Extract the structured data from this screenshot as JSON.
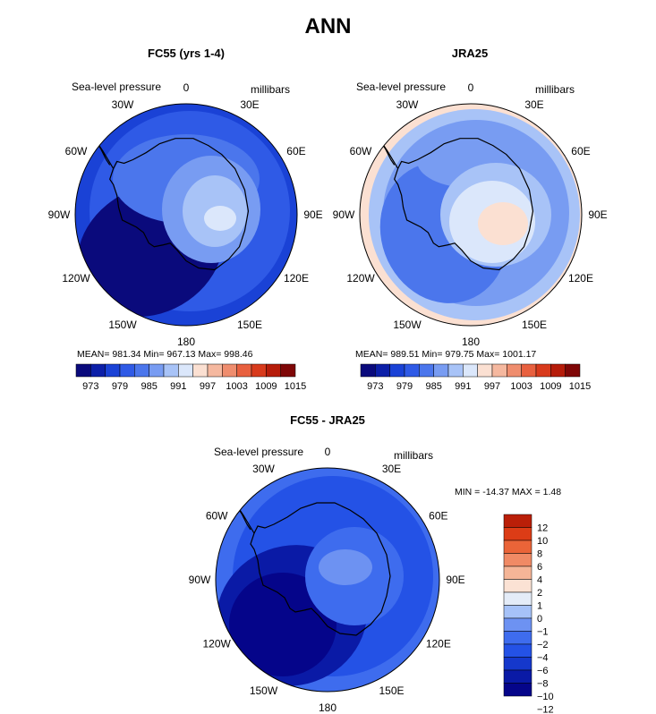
{
  "main_title": "ANN",
  "colors": {
    "palette": [
      "#0a0a7c",
      "#0c1fa8",
      "#1a42d6",
      "#2f5ae6",
      "#4b76ec",
      "#789cf2",
      "#a8c3f7",
      "#dbe7fb",
      "#fbe0d2",
      "#f5b89f",
      "#ef8d6e",
      "#e8603f",
      "#d83a1c",
      "#b61c0a",
      "#7f0707"
    ],
    "diff_palette": [
      "#05058a",
      "#0a1aa6",
      "#1538cc",
      "#2452e6",
      "#3e6cee",
      "#6d92f2",
      "#a6c2f8",
      "#e4ecf8",
      "#fbe2d4",
      "#f5b597",
      "#f08a65",
      "#ea6438",
      "#dc3c16",
      "#ba1f08"
    ]
  },
  "panels": [
    {
      "id": "fc55",
      "title": "FC55 (yrs 1-4)",
      "variable": "Sea-level pressure",
      "units": "millibars",
      "stats": "MEAN= 981.34   Min= 967.13   Max= 998.46",
      "lon_labels": [
        "0",
        "30E",
        "60E",
        "90E",
        "120E",
        "150E",
        "180",
        "150W",
        "120W",
        "90W",
        "60W",
        "30W"
      ]
    },
    {
      "id": "jra25",
      "title": "JRA25",
      "variable": "Sea-level pressure",
      "units": "millibars",
      "stats": "MEAN= 989.51   Min= 979.75   Max= 1001.17",
      "lon_labels": [
        "0",
        "30E",
        "60E",
        "90E",
        "120E",
        "150E",
        "180",
        "150W",
        "120W",
        "90W",
        "60W",
        "30W"
      ]
    },
    {
      "id": "diff",
      "title": "FC55 - JRA25",
      "variable": "Sea-level pressure",
      "units": "millibars",
      "stats": "MIN = -14.37 MAX =    1.48",
      "lon_labels": [
        "0",
        "30E",
        "60E",
        "90E",
        "120E",
        "150E",
        "180",
        "150W",
        "120W",
        "90W",
        "60W",
        "30W"
      ]
    }
  ],
  "colorbar_labels": [
    "973",
    "979",
    "985",
    "991",
    "997",
    "1003",
    "1009",
    "1015"
  ],
  "diff_colorbar_labels": [
    "12",
    "10",
    "8",
    "6",
    "4",
    "2",
    "1",
    "0",
    "−1",
    "−2",
    "−4",
    "−6",
    "−8",
    "−10",
    "−12"
  ]
}
